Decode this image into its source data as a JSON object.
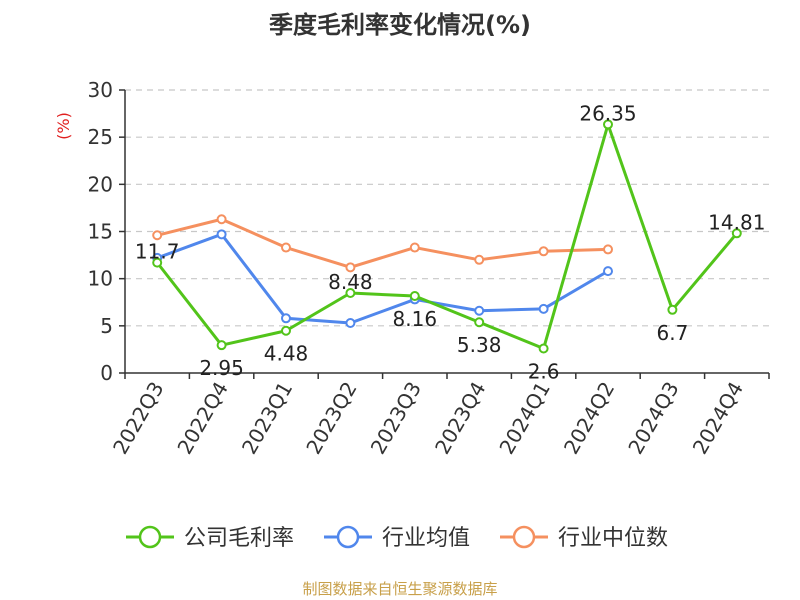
{
  "chart_data": {
    "type": "line",
    "title": "季度毛利率变化情况(%)",
    "ylabel": "(%)",
    "ylim": [
      0,
      30
    ],
    "yticks": [
      0,
      5,
      10,
      15,
      20,
      25,
      30
    ],
    "grid": true,
    "legend_position": "bottom",
    "categories": [
      "2022Q3",
      "2022Q4",
      "2023Q1",
      "2023Q2",
      "2023Q3",
      "2023Q4",
      "2024Q1",
      "2024Q2",
      "2024Q3",
      "2024Q4"
    ],
    "series": [
      {
        "name": "公司毛利率",
        "color": "#52c41a",
        "show_labels": true,
        "values": [
          11.7,
          2.95,
          4.48,
          8.48,
          8.16,
          5.38,
          2.6,
          26.35,
          6.7,
          14.81
        ]
      },
      {
        "name": "行业均值",
        "color": "#5087ec",
        "show_labels": false,
        "values": [
          12.2,
          14.7,
          5.8,
          5.3,
          7.8,
          6.6,
          6.8,
          10.8,
          null,
          null
        ]
      },
      {
        "name": "行业中位数",
        "color": "#f5905f",
        "show_labels": false,
        "values": [
          14.6,
          16.3,
          13.3,
          11.2,
          13.3,
          12.0,
          12.9,
          13.1,
          null,
          null
        ]
      }
    ]
  },
  "ylabel_color": "#e02020",
  "source": {
    "text": "制图数据来自恒生聚源数据库",
    "color": "#c8a04a"
  }
}
